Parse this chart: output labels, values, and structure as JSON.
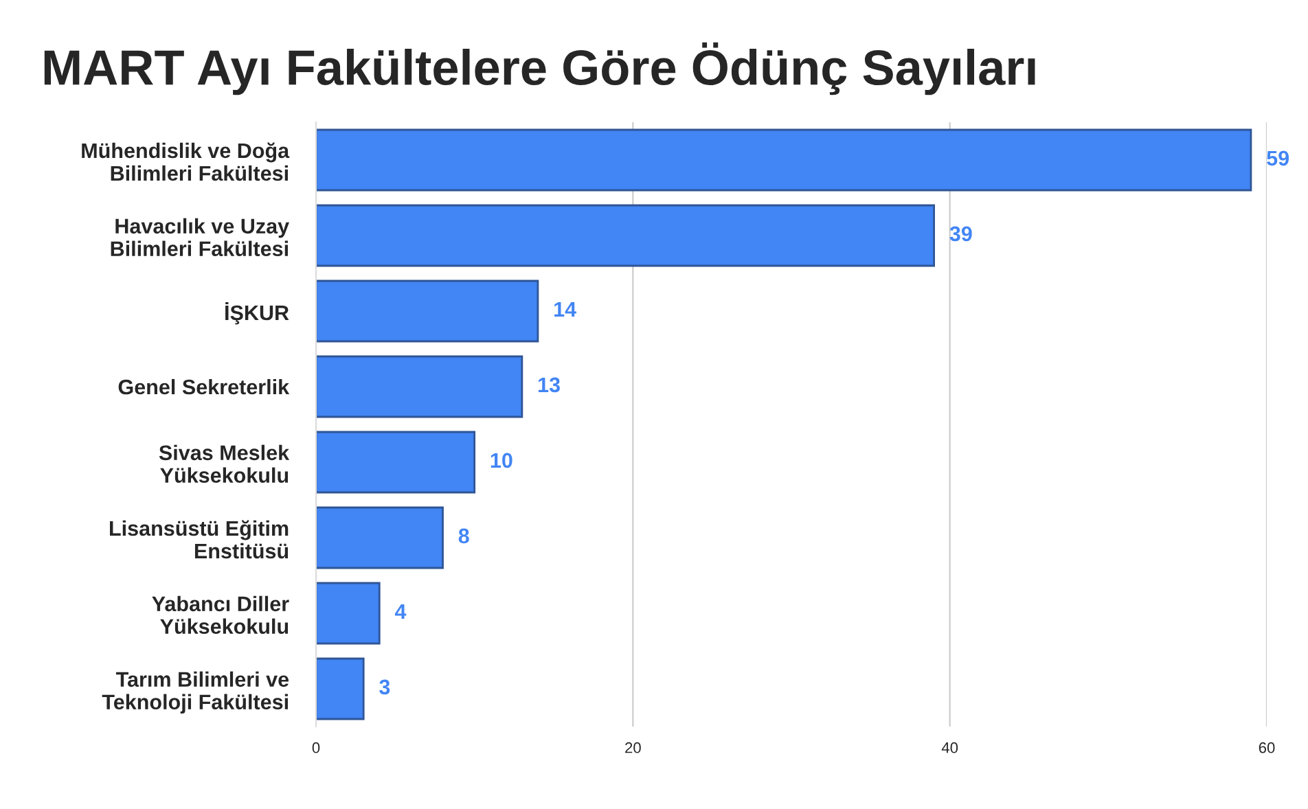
{
  "chart_data": {
    "type": "bar",
    "orientation": "horizontal",
    "title": "MART Ayı Fakültelere Göre Ödünç Sayıları",
    "categories": [
      "Mühendislik ve Doğa\nBilimleri Fakültesi",
      "Havacılık ve Uzay\nBilimleri Fakültesi",
      "İŞKUR",
      "Genel Sekreterlik",
      "Sivas Meslek\nYüksekokulu",
      "Lisansüstü Eğitim\nEnstitüsü",
      "Yabancı Diller\nYüksekokulu",
      "Tarım Bilimleri ve\nTeknoloji Fakültesi"
    ],
    "values": [
      59,
      39,
      14,
      13,
      10,
      8,
      4,
      3
    ],
    "color": "#4285f4",
    "xlim": [
      0,
      60
    ],
    "xticks": [
      0,
      20,
      40,
      60
    ],
    "grid": "x",
    "data_labels": true
  }
}
